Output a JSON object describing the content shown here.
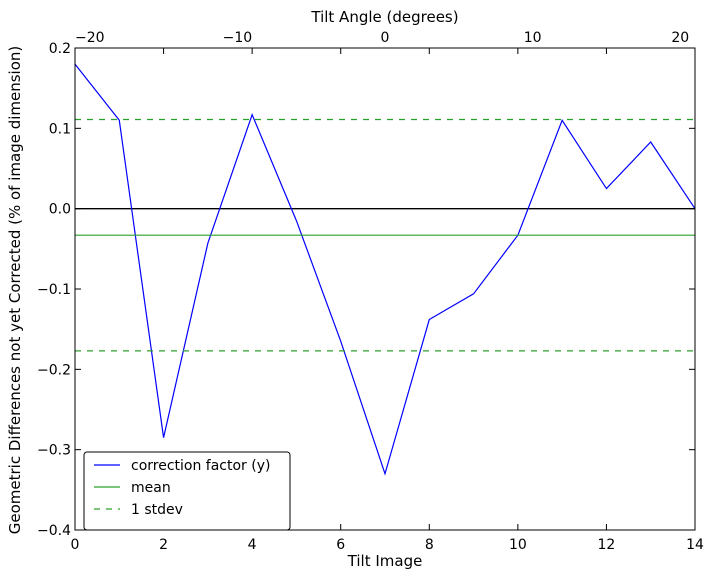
{
  "chart_data": {
    "type": "line",
    "xlabel": "Tilt Image",
    "ylabel": "Geometric Differences not yet Corrected (% of image dimension)",
    "top_xlabel": "Tilt Angle (degrees)",
    "xlim": [
      0,
      14
    ],
    "ylim": [
      -0.4,
      0.2
    ],
    "top_xlim": [
      -21,
      21
    ],
    "x_ticks": [
      0,
      2,
      4,
      6,
      8,
      10,
      12,
      14
    ],
    "x_tick_labels": [
      "0",
      "2",
      "4",
      "6",
      "8",
      "10",
      "12",
      "14"
    ],
    "y_ticks": [
      -0.4,
      -0.3,
      -0.2,
      -0.1,
      0.0,
      0.1,
      0.2
    ],
    "y_tick_labels": [
      "−0.4",
      "−0.3",
      "−0.2",
      "−0.1",
      "0.0",
      "0.1",
      "0.2"
    ],
    "top_ticks": [
      -20,
      -10,
      0,
      10,
      20
    ],
    "top_tick_labels": [
      "−20",
      "−10",
      "0",
      "10",
      "20"
    ],
    "grid": false,
    "legend_position": "lower-left",
    "series": [
      {
        "name": "correction factor (y)",
        "color": "#0000ff",
        "style": "solid",
        "x": [
          0,
          1,
          2,
          3,
          4,
          5,
          6,
          7,
          8,
          9,
          10,
          11,
          12,
          13,
          14
        ],
        "values": [
          0.18,
          0.11,
          -0.285,
          -0.043,
          0.117,
          -0.015,
          -0.165,
          -0.33,
          -0.138,
          -0.106,
          -0.033,
          0.11,
          0.025,
          0.083,
          0.0
        ]
      },
      {
        "name": "mean",
        "color": "#2ca02c",
        "style": "solid",
        "x": [
          0,
          14
        ],
        "values": [
          -0.033,
          -0.033
        ]
      },
      {
        "name": "1 stdev",
        "color": "#2ca02c",
        "style": "dashed",
        "x": [
          0,
          14
        ],
        "values": [
          0.111,
          0.111
        ]
      },
      {
        "style": "dashed",
        "color": "#2ca02c",
        "x": [
          0,
          14
        ],
        "values": [
          -0.177,
          -0.177
        ]
      }
    ],
    "reference_lines": [
      {
        "axis": "y",
        "value": 0.0,
        "color": "#000000"
      }
    ]
  }
}
